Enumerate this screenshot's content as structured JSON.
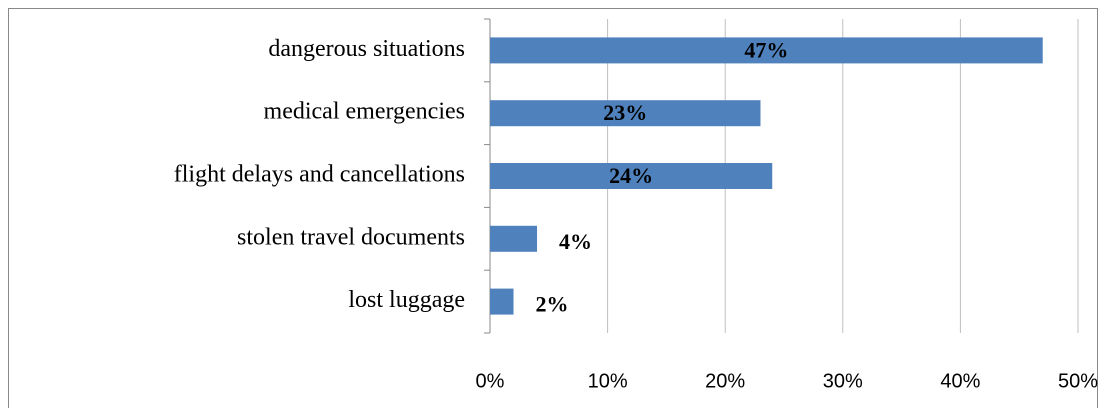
{
  "chart_data": {
    "type": "bar",
    "orientation": "horizontal",
    "categories": [
      "dangerous situations",
      "medical emergencies",
      "flight delays and cancellations",
      "stolen travel documents",
      "lost luggage"
    ],
    "values": [
      47,
      23,
      24,
      4,
      2
    ],
    "value_labels": [
      "47%",
      "23%",
      "24%",
      "4%",
      "2%"
    ],
    "color": "#4f81bd",
    "xlim": [
      0,
      50
    ],
    "xticks": [
      {
        "value": 0,
        "label": "0%"
      },
      {
        "value": 10,
        "label": "10%"
      },
      {
        "value": 20,
        "label": "20%"
      },
      {
        "value": 30,
        "label": "30%"
      },
      {
        "value": 40,
        "label": "40%"
      },
      {
        "value": 50,
        "label": "50%"
      }
    ],
    "grid": true
  }
}
